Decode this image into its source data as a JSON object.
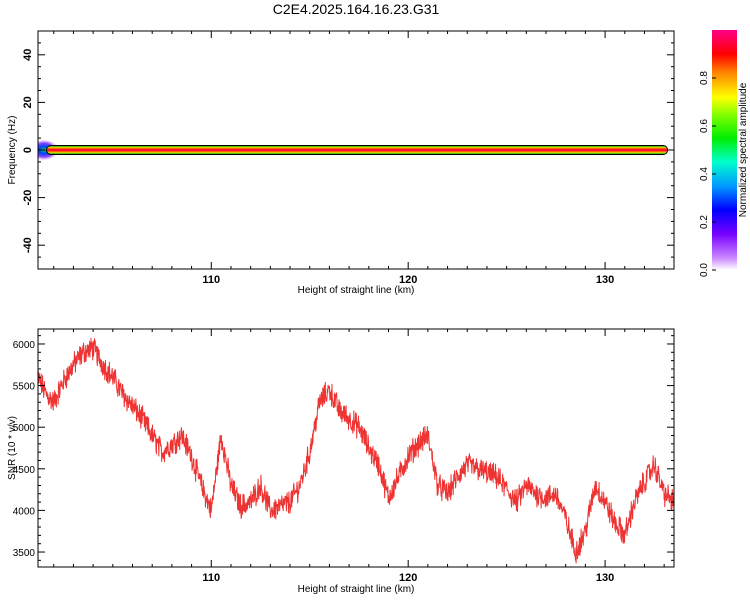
{
  "figure_title": "C2E4.2025.164.16.23.G31",
  "chart_data": [
    {
      "type": "heatmap",
      "panel": "spectrogram",
      "xlabel": "Height of straight line (km)",
      "ylabel": "Frequency (Hz)",
      "xlim": [
        101.2,
        133.5
      ],
      "ylim": [
        -50,
        50
      ],
      "xticks": [
        110,
        120,
        130
      ],
      "yticks": [
        -40,
        -20,
        0,
        20,
        40
      ],
      "ytick_labels": [
        "-40",
        "-20",
        "0",
        "20",
        "40"
      ],
      "xtick_labels": [
        "110",
        "120",
        "130"
      ],
      "band": {
        "x_start": 101.3,
        "x_end": 133.2,
        "frequency": 0
      },
      "colorbar": {
        "label": "Normalized spectral amplitude",
        "range": [
          0,
          1
        ],
        "ticks": [
          0.0,
          0.2,
          0.4,
          0.6,
          0.8
        ],
        "tick_labels": [
          "0.0",
          "0.2",
          "0.4",
          "0.6",
          "0.8"
        ]
      }
    },
    {
      "type": "line",
      "panel": "snr",
      "xlabel": "Height of straight line (km)",
      "ylabel": "SNR (10 * v/v)",
      "xlim": [
        101.2,
        133.5
      ],
      "ylim": [
        3320,
        6180
      ],
      "xticks": [
        110,
        120,
        130
      ],
      "xtick_labels": [
        "110",
        "120",
        "130"
      ],
      "yticks": [
        3500,
        4000,
        4500,
        5000,
        5500,
        6000
      ],
      "ytick_labels": [
        "3500",
        "4000",
        "4500",
        "5000",
        "5500",
        "6000"
      ],
      "color": "#ee3333",
      "x": [
        101.2,
        101.6,
        102.0,
        102.5,
        103.0,
        103.5,
        104.0,
        104.5,
        105.0,
        105.5,
        106.0,
        106.5,
        107.0,
        107.5,
        108.0,
        108.5,
        109.0,
        109.5,
        110.0,
        110.5,
        111.0,
        111.5,
        112.0,
        112.5,
        113.0,
        113.5,
        114.0,
        114.5,
        115.0,
        115.5,
        116.0,
        116.5,
        117.0,
        117.5,
        118.0,
        118.5,
        119.0,
        119.5,
        120.0,
        120.5,
        121.0,
        121.5,
        122.0,
        122.5,
        123.0,
        123.5,
        124.0,
        124.5,
        125.0,
        125.5,
        126.0,
        126.5,
        127.0,
        127.5,
        128.0,
        128.5,
        129.0,
        129.5,
        130.0,
        130.5,
        131.0,
        131.5,
        132.0,
        132.5,
        133.0,
        133.5
      ],
      "y": [
        5600,
        5400,
        5300,
        5550,
        5750,
        5900,
        5950,
        5750,
        5600,
        5400,
        5250,
        5100,
        4900,
        4700,
        4800,
        4900,
        4650,
        4300,
        4000,
        4900,
        4300,
        4050,
        4100,
        4300,
        4000,
        4050,
        4100,
        4300,
        4700,
        5300,
        5450,
        5200,
        5100,
        5000,
        4750,
        4550,
        4150,
        4400,
        4650,
        4800,
        4900,
        4300,
        4200,
        4400,
        4550,
        4500,
        4450,
        4400,
        4250,
        4100,
        4300,
        4200,
        4150,
        4200,
        3900,
        3500,
        3750,
        4300,
        4100,
        3850,
        3700,
        4100,
        4350,
        4550,
        4200,
        4100
      ],
      "noise_amplitude": 120
    }
  ]
}
